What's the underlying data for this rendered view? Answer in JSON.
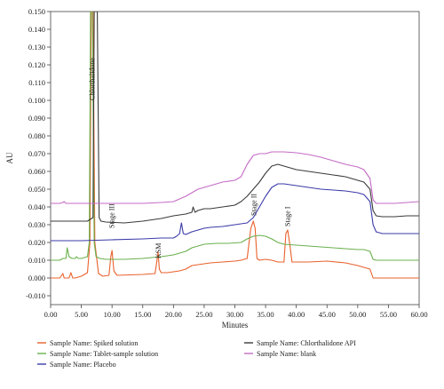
{
  "chart_data": {
    "type": "line",
    "title": "",
    "xlabel": "Minutes",
    "ylabel": "AU",
    "xlim": [
      0,
      60
    ],
    "ylim": [
      -0.015,
      0.15
    ],
    "x_ticks": [
      "0.00",
      "5.00",
      "10.00",
      "15.00",
      "20.00",
      "25.00",
      "30.00",
      "35.00",
      "40.00",
      "45.00",
      "50.00",
      "55.00",
      "60.00"
    ],
    "y_ticks": [
      "-0.010",
      "0.000",
      "0.010",
      "0.020",
      "0.030",
      "0.040",
      "0.050",
      "0.060",
      "0.070",
      "0.080",
      "0.090",
      "0.100",
      "0.110",
      "0.120",
      "0.130",
      "0.140",
      "0.150"
    ],
    "grid": false,
    "legend_position": "bottom",
    "series": [
      {
        "name": "Sample Name: Spiked solution",
        "color": "#e8612c",
        "x": [
          0,
          1.5,
          2.0,
          2.2,
          2.5,
          3.0,
          3.3,
          3.6,
          4.0,
          5.0,
          6.0,
          6.4,
          6.6,
          6.9,
          7.2,
          7.8,
          8.5,
          9.5,
          9.8,
          10.0,
          10.3,
          10.8,
          15.0,
          17.0,
          17.3,
          17.5,
          17.7,
          18.0,
          19.0,
          20.0,
          21.0,
          22.0,
          23.0,
          24.0,
          25.0,
          26.0,
          28.0,
          30.0,
          31.0,
          32.0,
          32.6,
          33.0,
          33.3,
          33.6,
          34.0,
          35.0,
          36.0,
          37.0,
          38.0,
          38.3,
          38.6,
          38.9,
          39.3,
          40.0,
          42.0,
          45.0,
          48.0,
          50.0,
          51.0,
          52.0,
          52.5,
          53.0,
          54.0,
          56.0,
          58.0,
          60.0
        ],
        "y": [
          0.0,
          0.0,
          0.0025,
          0.0,
          0.0,
          0.0,
          0.003,
          0.0,
          0.0,
          0.001,
          0.003,
          0.02,
          0.15,
          0.15,
          0.02,
          0.0025,
          0.001,
          0.0015,
          0.012,
          0.0155,
          0.004,
          0.0015,
          0.002,
          0.0025,
          0.0095,
          0.0145,
          0.005,
          0.003,
          0.003,
          0.0035,
          0.004,
          0.005,
          0.007,
          0.0075,
          0.008,
          0.0085,
          0.009,
          0.0095,
          0.01,
          0.011,
          0.028,
          0.032,
          0.028,
          0.011,
          0.01,
          0.0105,
          0.01,
          0.009,
          0.009,
          0.025,
          0.027,
          0.02,
          0.009,
          0.009,
          0.009,
          0.0095,
          0.0085,
          0.007,
          0.006,
          0.005,
          0.0,
          0.0,
          0.0,
          0.0,
          0.0,
          0.0
        ]
      },
      {
        "name": "Sample Name: Tablet-sample solution",
        "color": "#6ab04c",
        "x": [
          0,
          1.5,
          2.0,
          2.5,
          2.7,
          3.0,
          3.5,
          4.0,
          4.2,
          4.5,
          5.0,
          6.0,
          6.3,
          6.5,
          6.8,
          7.1,
          7.4,
          8.0,
          9.0,
          12.0,
          15.0,
          18.0,
          19.0,
          20.0,
          21.0,
          22.0,
          23.0,
          24.0,
          25.0,
          27.0,
          29.0,
          31.0,
          32.0,
          33.0,
          34.0,
          35.0,
          36.0,
          37.0,
          38.0,
          40.0,
          42.0,
          44.0,
          46.0,
          48.0,
          50.0,
          51.0,
          52.0,
          52.5,
          53.0,
          54.0,
          56.0,
          58.0,
          60.0
        ],
        "y": [
          0.01,
          0.01,
          0.011,
          0.011,
          0.017,
          0.012,
          0.011,
          0.011,
          0.012,
          0.011,
          0.011,
          0.012,
          0.02,
          0.15,
          0.15,
          0.02,
          0.012,
          0.011,
          0.0105,
          0.0105,
          0.011,
          0.012,
          0.0125,
          0.013,
          0.014,
          0.015,
          0.017,
          0.018,
          0.019,
          0.0195,
          0.0195,
          0.02,
          0.022,
          0.0235,
          0.024,
          0.0235,
          0.022,
          0.02,
          0.019,
          0.0185,
          0.018,
          0.0175,
          0.017,
          0.0165,
          0.016,
          0.016,
          0.015,
          0.0105,
          0.01,
          0.01,
          0.01,
          0.01,
          0.01
        ]
      },
      {
        "name": "Sample Name: Placebo",
        "color": "#3b3ba8",
        "x": [
          0,
          5.0,
          10.0,
          15.0,
          18.0,
          20.0,
          20.5,
          21.0,
          21.3,
          21.6,
          22.0,
          23.0,
          24.0,
          25.0,
          26.0,
          28.0,
          30.0,
          32.0,
          33.0,
          34.0,
          35.0,
          36.0,
          37.0,
          38.0,
          39.0,
          40.0,
          42.0,
          44.0,
          46.0,
          48.0,
          50.0,
          51.0,
          52.0,
          52.5,
          53.0,
          54.0,
          56.0,
          58.0,
          60.0
        ],
        "y": [
          0.021,
          0.021,
          0.0215,
          0.022,
          0.0225,
          0.0225,
          0.0235,
          0.025,
          0.031,
          0.025,
          0.0245,
          0.026,
          0.027,
          0.028,
          0.0285,
          0.029,
          0.03,
          0.031,
          0.034,
          0.04,
          0.046,
          0.051,
          0.053,
          0.053,
          0.0525,
          0.052,
          0.051,
          0.05,
          0.0495,
          0.049,
          0.048,
          0.047,
          0.043,
          0.03,
          0.026,
          0.025,
          0.025,
          0.025,
          0.025
        ]
      },
      {
        "name": "Sample Name: Chlorthalidone API",
        "color": "#3a3a3a",
        "x": [
          0,
          5.0,
          6.0,
          6.9,
          7.1,
          7.4,
          7.6,
          7.9,
          8.2,
          9.0,
          12.0,
          15.0,
          18.0,
          20.0,
          21.0,
          22.0,
          23.0,
          23.2,
          23.5,
          24.0,
          25.0,
          26.0,
          28.0,
          30.0,
          31.0,
          32.0,
          33.0,
          34.0,
          35.0,
          36.0,
          37.0,
          38.0,
          39.0,
          40.0,
          42.0,
          44.0,
          46.0,
          48.0,
          50.0,
          51.0,
          52.0,
          52.5,
          53.0,
          54.0,
          56.0,
          58.0,
          60.0
        ],
        "y": [
          0.032,
          0.032,
          0.032,
          0.034,
          0.15,
          0.15,
          0.15,
          0.034,
          0.032,
          0.0315,
          0.031,
          0.032,
          0.0335,
          0.035,
          0.0355,
          0.036,
          0.037,
          0.04,
          0.037,
          0.038,
          0.039,
          0.039,
          0.04,
          0.041,
          0.043,
          0.046,
          0.05,
          0.054,
          0.059,
          0.063,
          0.064,
          0.063,
          0.062,
          0.061,
          0.06,
          0.059,
          0.058,
          0.057,
          0.055,
          0.054,
          0.05,
          0.038,
          0.035,
          0.0345,
          0.0345,
          0.035,
          0.035
        ]
      },
      {
        "name": "Sample Name: blank",
        "color": "#c46bc4",
        "x": [
          0,
          1.5,
          2.0,
          2.2,
          2.5,
          5.0,
          10.0,
          15.0,
          18.0,
          20.0,
          21.0,
          22.0,
          23.0,
          24.0,
          25.0,
          26.0,
          28.0,
          30.0,
          31.0,
          32.0,
          33.0,
          34.0,
          35.0,
          36.0,
          38.0,
          40.0,
          42.0,
          44.0,
          46.0,
          48.0,
          50.0,
          51.0,
          52.0,
          52.5,
          53.0,
          54.0,
          56.0,
          58.0,
          60.0
        ],
        "y": [
          0.042,
          0.042,
          0.0425,
          0.043,
          0.042,
          0.042,
          0.042,
          0.042,
          0.0425,
          0.043,
          0.0445,
          0.046,
          0.048,
          0.05,
          0.051,
          0.052,
          0.054,
          0.055,
          0.057,
          0.064,
          0.069,
          0.07,
          0.07,
          0.071,
          0.071,
          0.0705,
          0.0695,
          0.068,
          0.066,
          0.064,
          0.0625,
          0.061,
          0.056,
          0.044,
          0.042,
          0.042,
          0.042,
          0.0425,
          0.043
        ]
      }
    ],
    "annotations": [
      {
        "text": "Chlorthalidone",
        "x": 6.7,
        "y": 0.1
      },
      {
        "text": "Stage III",
        "x": 9.9,
        "y": 0.028
      },
      {
        "text": "KSM",
        "x": 17.5,
        "y": 0.011
      },
      {
        "text": "Stage II",
        "x": 33.0,
        "y": 0.035
      },
      {
        "text": "Stage I",
        "x": 38.5,
        "y": 0.029
      }
    ]
  }
}
